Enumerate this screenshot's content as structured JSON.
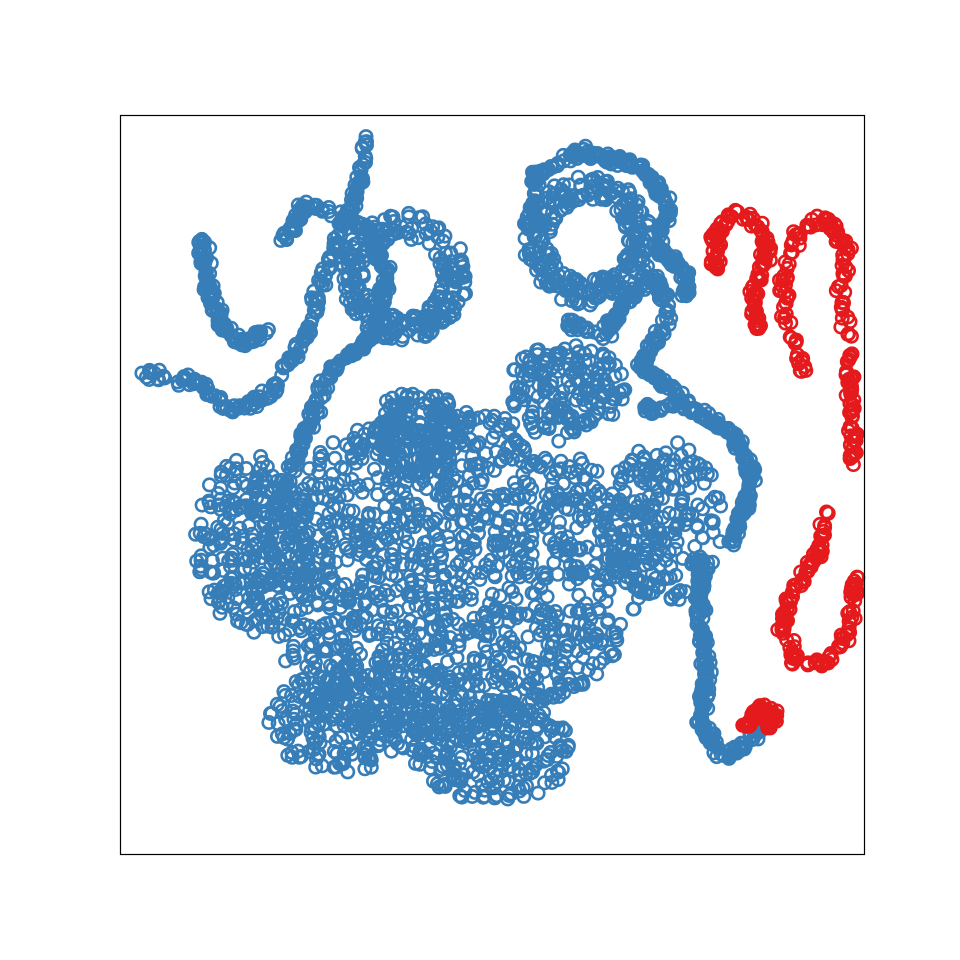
{
  "chart_data": {
    "type": "scatter",
    "title": "",
    "xlabel": "",
    "ylabel": "",
    "xlim": [
      0,
      100
    ],
    "ylim": [
      0,
      100
    ],
    "axis_ticks": "none",
    "grid": false,
    "legend": "none",
    "marker": "open-circle",
    "series": [
      {
        "color": "#377eb8",
        "segments": [
          {
            "kind": "blob",
            "cx": 44,
            "cy": 38,
            "rx": 26,
            "ry": 22,
            "n": 1300
          },
          {
            "kind": "blob",
            "cx": 18,
            "cy": 42,
            "rx": 8,
            "ry": 12,
            "n": 260
          },
          {
            "kind": "blob",
            "cx": 30,
            "cy": 18,
            "rx": 10,
            "ry": 7,
            "n": 220
          },
          {
            "kind": "blob",
            "cx": 50,
            "cy": 14,
            "rx": 11,
            "ry": 7,
            "n": 240
          },
          {
            "kind": "blob",
            "cx": 73,
            "cy": 45,
            "rx": 8,
            "ry": 11,
            "n": 220
          },
          {
            "kind": "blob",
            "cx": 40,
            "cy": 57,
            "rx": 6,
            "ry": 6,
            "n": 160
          },
          {
            "kind": "blob",
            "cx": 60,
            "cy": 63,
            "rx": 8,
            "ry": 6,
            "n": 170
          },
          {
            "kind": "ring",
            "cx": 38,
            "cy": 78,
            "r": 7,
            "n": 240
          },
          {
            "kind": "ring",
            "cx": 63,
            "cy": 83,
            "r": 7,
            "n": 260
          },
          {
            "kind": "path",
            "n": 200,
            "pts": [
              [
                3,
                65
              ],
              [
                10,
                64
              ],
              [
                15,
                60
              ],
              [
                20,
                62
              ],
              [
                25,
                70
              ],
              [
                28,
                80
              ],
              [
                32,
                90
              ],
              [
                33,
                97
              ]
            ]
          },
          {
            "kind": "path",
            "n": 260,
            "pts": [
              [
                21,
                47
              ],
              [
                25,
                57
              ],
              [
                28,
                65
              ],
              [
                34,
                70
              ],
              [
                36,
                78
              ],
              [
                33,
                85
              ],
              [
                25,
                88
              ],
              [
                22,
                83
              ]
            ]
          },
          {
            "kind": "path",
            "n": 110,
            "pts": [
              [
                11,
                83
              ],
              [
                12,
                76
              ],
              [
                14,
                71
              ],
              [
                17,
                69
              ],
              [
                20,
                71
              ]
            ]
          },
          {
            "kind": "path",
            "n": 180,
            "pts": [
              [
                60,
                72
              ],
              [
                65,
                70
              ],
              [
                68,
                75
              ],
              [
                72,
                78
              ],
              [
                74,
                73
              ],
              [
                70,
                66
              ],
              [
                75,
                62
              ]
            ]
          },
          {
            "kind": "path",
            "n": 230,
            "pts": [
              [
                55,
                85
              ],
              [
                56,
                92
              ],
              [
                62,
                95
              ],
              [
                70,
                93
              ],
              [
                74,
                88
              ],
              [
                72,
                82
              ],
              [
                76,
                79
              ],
              [
                76,
                75
              ]
            ]
          },
          {
            "kind": "path",
            "n": 170,
            "pts": [
              [
                82,
                42
              ],
              [
                84,
                47
              ],
              [
                85,
                52
              ],
              [
                82,
                57
              ],
              [
                76,
                61
              ],
              [
                70,
                60
              ]
            ]
          },
          {
            "kind": "path",
            "n": 200,
            "pts": [
              [
                78,
                40
              ],
              [
                78,
                32
              ],
              [
                79,
                24
              ],
              [
                78,
                18
              ],
              [
                81,
                13
              ],
              [
                84,
                15
              ],
              [
                87,
                18
              ]
            ]
          }
        ]
      },
      {
        "color": "#e41a1c",
        "segments": [
          {
            "kind": "path",
            "n": 120,
            "pts": [
              [
                80,
                79
              ],
              [
                80,
                84
              ],
              [
                83,
                87
              ],
              [
                86,
                85
              ],
              [
                87,
                81
              ],
              [
                85,
                75
              ],
              [
                86,
                71
              ]
            ]
          },
          {
            "kind": "path",
            "n": 160,
            "pts": [
              [
                92,
                65
              ],
              [
                90,
                70
              ],
              [
                89,
                77
              ],
              [
                91,
                84
              ],
              [
                95,
                86
              ],
              [
                98,
                82
              ],
              [
                97,
                77
              ],
              [
                98,
                70
              ],
              [
                98.5,
                53
              ]
            ]
          },
          {
            "kind": "path",
            "n": 140,
            "pts": [
              [
                95,
                46
              ],
              [
                94,
                41
              ],
              [
                90,
                35
              ],
              [
                89,
                30
              ],
              [
                91,
                26
              ],
              [
                95,
                26
              ],
              [
                98,
                30
              ],
              [
                99,
                38
              ]
            ]
          },
          {
            "kind": "path",
            "n": 60,
            "pts": [
              [
                84,
                17
              ],
              [
                86,
                20
              ],
              [
                88,
                19
              ],
              [
                87,
                17
              ]
            ]
          }
        ]
      }
    ]
  }
}
